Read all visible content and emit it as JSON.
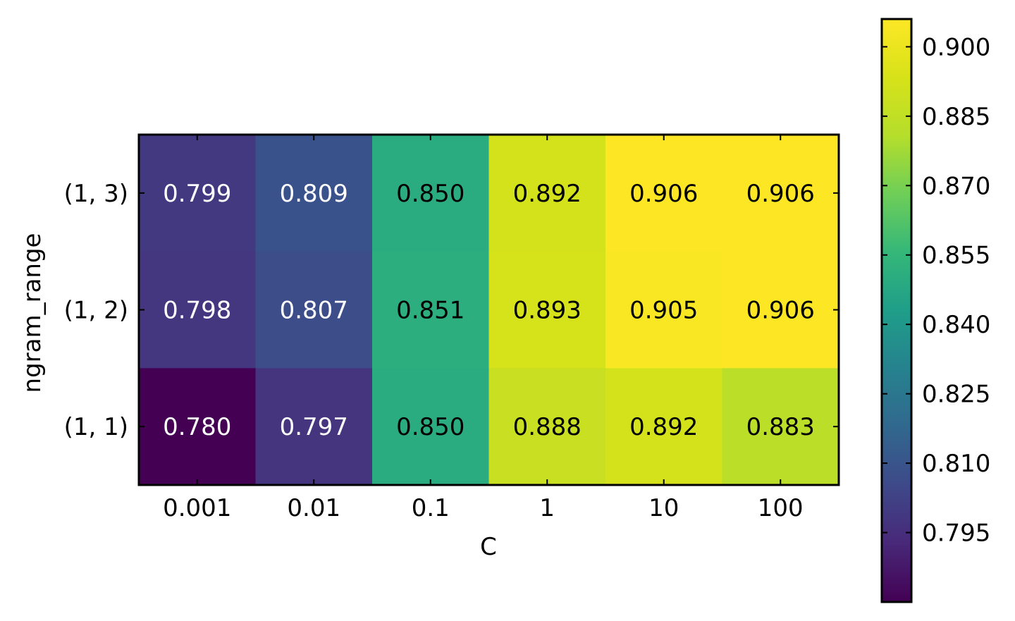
{
  "chart_data": {
    "type": "heatmap",
    "xlabel": "C",
    "ylabel": "ngram_range",
    "x_categories": [
      "0.001",
      "0.01",
      "0.1",
      "1",
      "10",
      "100"
    ],
    "y_categories": [
      "(1, 3)",
      "(1, 2)",
      "(1, 1)"
    ],
    "values": [
      [
        0.799,
        0.809,
        0.85,
        0.892,
        0.906,
        0.906
      ],
      [
        0.798,
        0.807,
        0.851,
        0.893,
        0.905,
        0.906
      ],
      [
        0.78,
        0.797,
        0.85,
        0.888,
        0.892,
        0.883
      ]
    ],
    "value_labels": [
      [
        "0.799",
        "0.809",
        "0.850",
        "0.892",
        "0.906",
        "0.906"
      ],
      [
        "0.798",
        "0.807",
        "0.851",
        "0.893",
        "0.905",
        "0.906"
      ],
      [
        "0.780",
        "0.797",
        "0.850",
        "0.888",
        "0.892",
        "0.883"
      ]
    ],
    "colormap": "viridis",
    "color_range": [
      0.78,
      0.906
    ],
    "colorbar": {
      "ticks": [
        0.795,
        0.81,
        0.825,
        0.84,
        0.855,
        0.87,
        0.885,
        0.9
      ],
      "tick_labels": [
        "0.795",
        "0.810",
        "0.825",
        "0.840",
        "0.855",
        "0.870",
        "0.885",
        "0.900"
      ],
      "placement": "right"
    },
    "grid": false,
    "light_text_color": "#ffffff",
    "dark_text_color": "#000000"
  }
}
